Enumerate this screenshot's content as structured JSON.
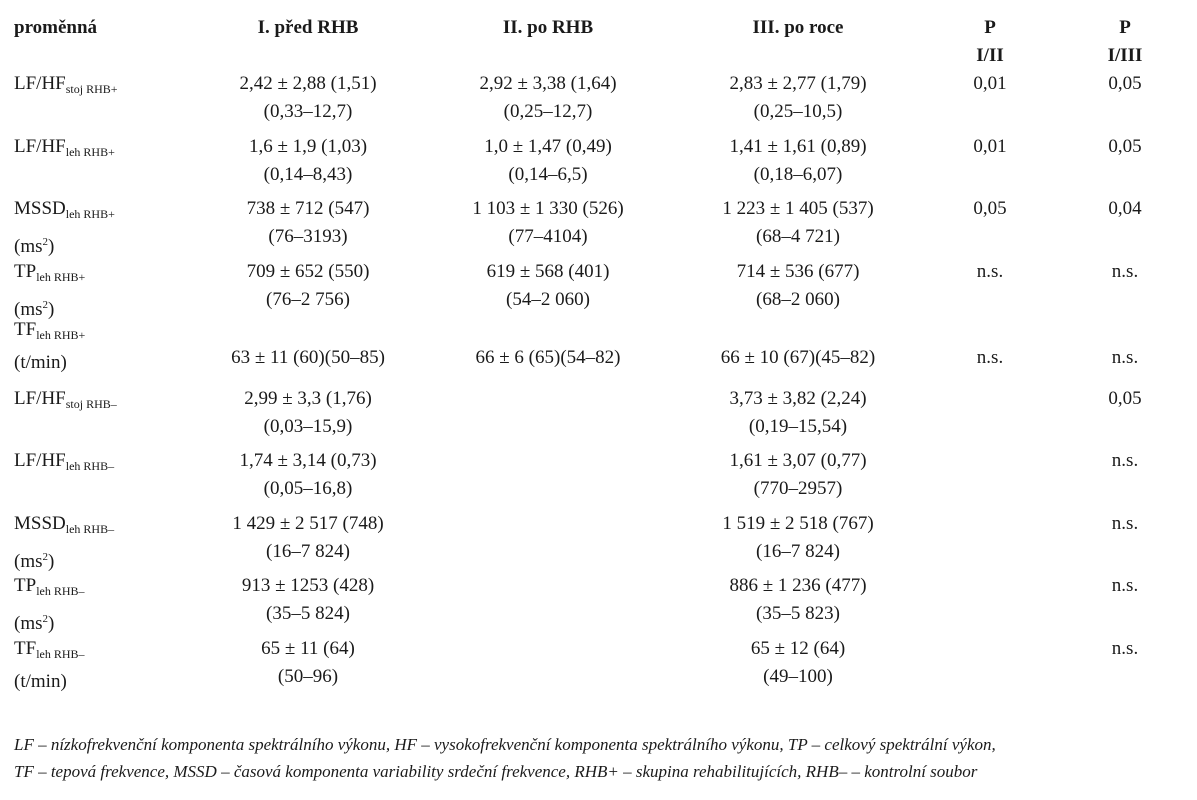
{
  "header": {
    "variable": "proměnná",
    "col1": "I. před RHB",
    "col2": "II. po RHB",
    "col3": "III. po roce",
    "p12_top": "P",
    "p12_bottom": "I/II",
    "p13_top": "P",
    "p13_bottom": "I/III"
  },
  "rows": [
    {
      "var_main": "LF/HF",
      "var_sub": "stoj RHB+",
      "var_unit": "",
      "c1": [
        "2,42 ± 2,88 (1,51)",
        "(0,33–12,7)"
      ],
      "c2": [
        "2,92 ± 3,38 (1,64)",
        "(0,25–12,7)"
      ],
      "c3": [
        "2,83 ± 2,77 (1,79)",
        "(0,25–10,5)"
      ],
      "p12": "0,01",
      "p13": "0,05"
    },
    {
      "var_main": "LF/HF",
      "var_sub": "leh RHB+",
      "var_unit": "",
      "c1": [
        "1,6 ± 1,9 (1,03)",
        "(0,14–8,43)"
      ],
      "c2": [
        "1,0 ± 1,47 (0,49)",
        "(0,14–6,5)"
      ],
      "c3": [
        "1,41 ± 1,61 (0,89)",
        "(0,18–6,07)"
      ],
      "p12": "0,01",
      "p13": "0,05"
    },
    {
      "var_main": "MSSD",
      "var_sub": "leh RHB+",
      "var_unit": "(ms",
      "c1": [
        "738 ± 712 (547)",
        "(76–3193)"
      ],
      "c2": [
        "1 103 ± 1 330 (526)",
        "(77–4104)"
      ],
      "c3": [
        "1 223 ± 1 405 (537)",
        "(68–4 721)"
      ],
      "p12": "0,05",
      "p13": "0,04"
    },
    {
      "var_main": "TP",
      "var_sub": "leh RHB+",
      "var_unit": "(ms",
      "c1": [
        "709 ± 652 (550)",
        "(76–2 756)"
      ],
      "c2": [
        "619 ± 568 (401)",
        "(54–2 060)"
      ],
      "c3": [
        "714 ± 536 (677)",
        "(68–2 060)"
      ],
      "p12": "n.s.",
      "p13": "n.s."
    },
    {
      "var_main": "TF",
      "var_sub": "leh RHB+",
      "var_unit": "(t/min)",
      "c1": [
        "63 ± 11 (60)(50–85)"
      ],
      "c2": [
        "66 ± 6 (65)(54–82)"
      ],
      "c3": [
        "66 ± 10 (67)(45–82)"
      ],
      "p12": "n.s.",
      "p13": "n.s."
    },
    {
      "var_main": "LF/HF",
      "var_sub": "stoj RHB–",
      "var_unit": "",
      "c1": [
        "2,99 ± 3,3 (1,76)",
        "(0,03–15,9)"
      ],
      "c2": [],
      "c3": [
        "3,73 ± 3,82 (2,24)",
        "(0,19–15,54)"
      ],
      "p12": "",
      "p13": "0,05"
    },
    {
      "var_main": "LF/HF",
      "var_sub": "leh RHB–",
      "var_unit": "",
      "c1": [
        "1,74 ± 3,14 (0,73)",
        "(0,05–16,8)"
      ],
      "c2": [],
      "c3": [
        "1,61 ± 3,07 (0,77)",
        "(770–2957)"
      ],
      "p12": "",
      "p13": "n.s."
    },
    {
      "var_main": "MSSD",
      "var_sub": "leh RHB–",
      "var_unit": "(ms",
      "c1": [
        "1 429 ± 2 517 (748)",
        "(16–7 824)"
      ],
      "c2": [],
      "c3": [
        "1 519 ± 2 518 (767)",
        "(16–7 824)"
      ],
      "p12": "",
      "p13": "n.s."
    },
    {
      "var_main": "TP",
      "var_sub": "leh RHB–",
      "var_unit": "(ms",
      "c1": [
        "913 ± 1253 (428)",
        "(35–5 824)"
      ],
      "c2": [],
      "c3": [
        "886 ± 1 236 (477)",
        "(35–5 823)"
      ],
      "p12": "",
      "p13": "n.s."
    },
    {
      "var_main": "TF",
      "var_sub": "leh RHB–",
      "var_unit": "(t/min)",
      "c1": [
        "65 ± 11 (64)",
        "(50–96)"
      ],
      "c2": [],
      "c3": [
        "65 ± 12 (64)",
        "(49–100)"
      ],
      "p12": "",
      "p13": "n.s."
    }
  ],
  "unit_sup": "2",
  "unit_close": ")",
  "notes": [
    "LF – nízkofrekvenční komponenta spektrálního výkonu, HF – vysokofrekvenční komponenta spektrálního výkonu, TP – celkový spektrální výkon,",
    "TF – tepová frekvence, MSSD – časová komponenta variability srdeční frekvence, RHB+ – skupina rehabilitujících, RHB– – kontrolní soubor"
  ]
}
